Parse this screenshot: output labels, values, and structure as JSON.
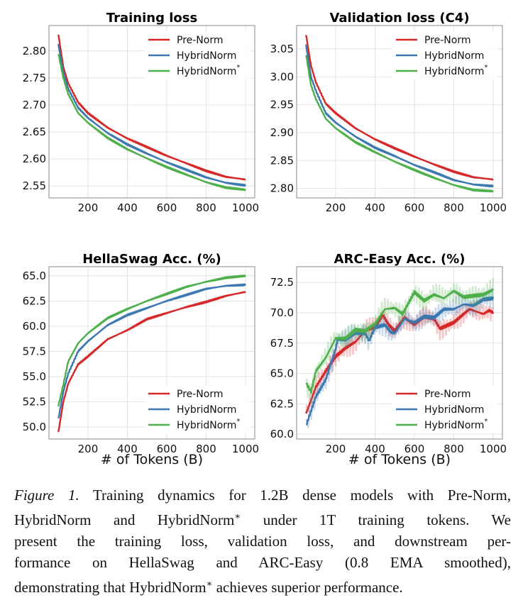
{
  "chart_data": [
    {
      "type": "line",
      "title": "Training loss",
      "xlabel": "",
      "ylabel": "",
      "xlim": [
        2,
        1047
      ],
      "ylim": [
        2.528,
        2.847
      ],
      "xticks": [
        200,
        400,
        600,
        800,
        1000
      ],
      "yticks": [
        2.55,
        2.6,
        2.65,
        2.7,
        2.75,
        2.8
      ],
      "ytick_decimals": 2,
      "grid": true,
      "legend": "top-right",
      "raw_overlay": false,
      "series": [
        {
          "name": "Pre-Norm",
          "color": "#d62728",
          "x": [
            50,
            75,
            100,
            150,
            200,
            300,
            400,
            500,
            600,
            700,
            800,
            900,
            1000
          ],
          "y": [
            2.83,
            2.77,
            2.74,
            2.705,
            2.685,
            2.658,
            2.638,
            2.622,
            2.606,
            2.592,
            2.578,
            2.567,
            2.562
          ]
        },
        {
          "name": "HybridNorm",
          "color": "#3b78b0",
          "x": [
            50,
            75,
            100,
            150,
            200,
            300,
            400,
            500,
            600,
            700,
            800,
            900,
            1000
          ],
          "y": [
            2.812,
            2.76,
            2.73,
            2.695,
            2.676,
            2.648,
            2.627,
            2.61,
            2.594,
            2.58,
            2.566,
            2.556,
            2.551
          ]
        },
        {
          "name": "HybridNorm",
          "sup": "*",
          "color": "#4daf4a",
          "x": [
            50,
            75,
            100,
            150,
            200,
            300,
            400,
            500,
            600,
            700,
            800,
            900,
            1000
          ],
          "y": [
            2.795,
            2.75,
            2.72,
            2.685,
            2.667,
            2.639,
            2.618,
            2.601,
            2.585,
            2.571,
            2.557,
            2.547,
            2.543
          ]
        }
      ]
    },
    {
      "type": "line",
      "title": "Validation loss (C4)",
      "xlabel": "",
      "ylabel": "",
      "xlim": [
        2,
        1047
      ],
      "ylim": [
        2.783,
        3.092
      ],
      "xticks": [
        200,
        400,
        600,
        800,
        1000
      ],
      "yticks": [
        2.8,
        2.85,
        2.9,
        2.95,
        3.0,
        3.05
      ],
      "ytick_decimals": 2,
      "grid": true,
      "legend": "top-right",
      "raw_overlay": false,
      "series": [
        {
          "name": "Pre-Norm",
          "color": "#d62728",
          "x": [
            50,
            75,
            100,
            150,
            200,
            300,
            400,
            500,
            600,
            700,
            800,
            900,
            1000
          ],
          "y": [
            3.075,
            3.02,
            2.99,
            2.952,
            2.935,
            2.908,
            2.888,
            2.872,
            2.857,
            2.843,
            2.83,
            2.82,
            2.816
          ]
        },
        {
          "name": "HybridNorm",
          "color": "#3b78b0",
          "x": [
            50,
            75,
            100,
            150,
            200,
            300,
            400,
            500,
            600,
            700,
            800,
            900,
            1000
          ],
          "y": [
            3.057,
            3.0,
            2.975,
            2.935,
            2.918,
            2.893,
            2.873,
            2.858,
            2.842,
            2.829,
            2.815,
            2.807,
            2.804
          ]
        },
        {
          "name": "HybridNorm",
          "sup": "*",
          "color": "#4daf4a",
          "x": [
            50,
            75,
            100,
            150,
            200,
            300,
            400,
            500,
            600,
            700,
            800,
            900,
            1000
          ],
          "y": [
            3.04,
            2.985,
            2.96,
            2.925,
            2.908,
            2.883,
            2.865,
            2.848,
            2.833,
            2.819,
            2.806,
            2.797,
            2.795
          ]
        }
      ]
    },
    {
      "type": "line",
      "title": "HellaSwag Acc. (%)",
      "xlabel": "# of Tokens (B)",
      "ylabel": "",
      "xlim": [
        2,
        1047
      ],
      "ylim": [
        48.8,
        65.9
      ],
      "xticks": [
        200,
        400,
        600,
        800,
        1000
      ],
      "yticks": [
        50.0,
        52.5,
        55.0,
        57.5,
        60.0,
        62.5,
        65.0
      ],
      "ytick_decimals": 1,
      "grid": true,
      "legend": "bottom-right",
      "raw_overlay": false,
      "series": [
        {
          "name": "Pre-Norm",
          "color": "#d62728",
          "x": [
            50,
            75,
            100,
            150,
            200,
            300,
            400,
            500,
            600,
            700,
            800,
            900,
            1000
          ],
          "y": [
            49.5,
            52.5,
            54.3,
            56.2,
            57.0,
            58.7,
            59.6,
            60.7,
            61.3,
            61.9,
            62.4,
            63.0,
            63.4
          ]
        },
        {
          "name": "HybridNorm",
          "color": "#3b78b0",
          "x": [
            50,
            75,
            100,
            150,
            200,
            300,
            400,
            500,
            600,
            700,
            800,
            900,
            1000
          ],
          "y": [
            50.8,
            53.5,
            55.3,
            57.5,
            58.5,
            60.1,
            61.1,
            61.8,
            62.5,
            63.1,
            63.7,
            64.0,
            64.1
          ]
        },
        {
          "name": "HybridNorm",
          "sup": "*",
          "color": "#4daf4a",
          "x": [
            50,
            75,
            100,
            150,
            200,
            300,
            400,
            500,
            600,
            700,
            800,
            900,
            1000
          ],
          "y": [
            52.1,
            54.2,
            56.5,
            58.3,
            59.3,
            60.8,
            61.7,
            62.5,
            63.2,
            63.9,
            64.4,
            64.8,
            65.0
          ]
        }
      ]
    },
    {
      "type": "line",
      "title": "ARC-Easy Acc. (%)",
      "xlabel": "# of Tokens (B)",
      "ylabel": "",
      "xlim": [
        2,
        1047
      ],
      "ylim": [
        59.6,
        73.8
      ],
      "xticks": [
        200,
        400,
        600,
        800,
        1000
      ],
      "yticks": [
        60.0,
        62.5,
        65.0,
        67.5,
        70.0,
        72.5
      ],
      "ytick_decimals": 1,
      "grid": true,
      "legend": "bottom-right",
      "raw_overlay": true,
      "series": [
        {
          "name": "Pre-Norm",
          "color": "#d62728",
          "x": [
            50,
            100,
            150,
            200,
            250,
            300,
            350,
            400,
            440,
            470,
            500,
            550,
            600,
            650,
            700,
            730,
            800,
            850,
            880,
            950,
            980,
            1000
          ],
          "y": [
            61.7,
            63.9,
            65.2,
            66.4,
            67.1,
            67.6,
            68.5,
            68.8,
            69.8,
            69.0,
            68.5,
            69.6,
            69.0,
            69.6,
            69.5,
            68.7,
            69.2,
            69.9,
            70.3,
            69.9,
            70.2,
            70.0
          ]
        },
        {
          "name": "HybridNorm",
          "color": "#3b78b0",
          "x": [
            50,
            100,
            150,
            200,
            210,
            250,
            300,
            350,
            370,
            400,
            450,
            480,
            500,
            550,
            600,
            650,
            700,
            750,
            800,
            850,
            900,
            950,
            1000
          ],
          "y": [
            60.7,
            63.1,
            64.5,
            67.0,
            67.8,
            67.7,
            68.3,
            68.3,
            67.7,
            68.8,
            69.0,
            68.4,
            68.3,
            69.5,
            69.2,
            69.7,
            69.6,
            70.3,
            70.3,
            70.7,
            70.6,
            71.1,
            71.2
          ]
        },
        {
          "name": "HybridNorm",
          "sup": "*",
          "color": "#4daf4a",
          "x": [
            50,
            75,
            100,
            150,
            200,
            250,
            300,
            350,
            400,
            450,
            500,
            540,
            600,
            650,
            700,
            750,
            800,
            850,
            900,
            950,
            1000
          ],
          "y": [
            64.2,
            63.5,
            65.2,
            66.3,
            67.9,
            67.9,
            68.6,
            68.5,
            69.1,
            70.3,
            70.4,
            69.9,
            71.7,
            71.0,
            71.5,
            71.2,
            71.8,
            71.3,
            71.4,
            71.5,
            71.9
          ]
        }
      ]
    }
  ],
  "caption": {
    "label": "Figure 1.",
    "lines": [
      "Training dynamics for 1.2B dense models with Pre-Norm,",
      "HybridNorm and HybridNorm* under 1T training tokens.  We",
      "present the training loss, validation loss, and downstream per-",
      "formance on HellaSwag and ARC-Easy (0.8 EMA smoothed),",
      "demonstrating that HybridNorm* achieves superior performance."
    ]
  }
}
